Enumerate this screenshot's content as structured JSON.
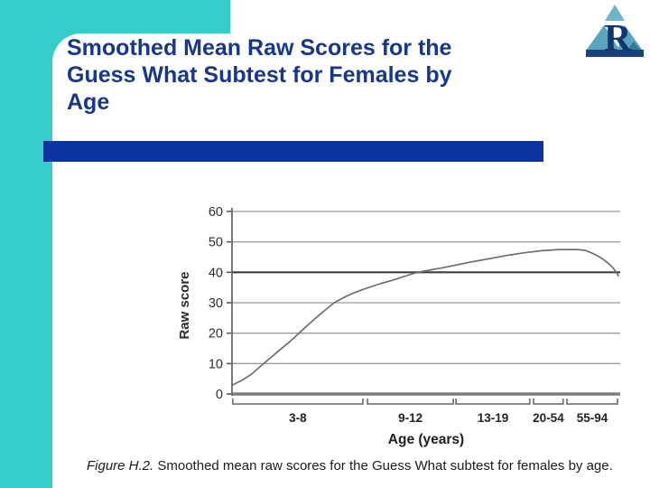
{
  "slide": {
    "title_lines": [
      "Smoothed Mean Raw Scores for the",
      "Guess What Subtest for Females by",
      "Age"
    ],
    "caption_prefix": "Figure H.2.",
    "caption_text": " Smoothed mean raw scores for the Guess What subtest for females by age."
  },
  "logo": {
    "letter": "R"
  },
  "colors": {
    "teal_accent": "#35cdca",
    "divider_blue": "#0a33a0",
    "title_blue": "#17378c",
    "grid_gray": "#9b9b9b",
    "emphasis_gray": "#3f3f3f",
    "curve_gray": "#6e6e6e",
    "logo_lightblue": "#58a6bd",
    "logo_navy": "#1c3f7e"
  },
  "chart_data": {
    "type": "line",
    "title": "",
    "ylabel": "Raw score",
    "xlabel": "Age (years)",
    "ylim": [
      0,
      60
    ],
    "yticks": [
      0,
      10,
      20,
      30,
      40,
      50,
      60
    ],
    "emphasized_gridline": 40,
    "grid": true,
    "legend": "none",
    "categories": [
      {
        "label": "3-8",
        "start_pct": 0.2,
        "end_pct": 33.7
      },
      {
        "label": "9-12",
        "start_pct": 34.9,
        "end_pct": 57.0
      },
      {
        "label": "13-19",
        "start_pct": 57.7,
        "end_pct": 76.7
      },
      {
        "label": "20-54",
        "start_pct": 77.7,
        "end_pct": 85.3
      },
      {
        "label": "55-94",
        "start_pct": 86.3,
        "end_pct": 99.3
      }
    ],
    "series": [
      {
        "name": "Smoothed mean raw score (females)",
        "points_pct_value": [
          [
            0.2,
            3
          ],
          [
            2.5,
            4.5
          ],
          [
            5,
            6.5
          ],
          [
            7.7,
            9.5
          ],
          [
            10,
            12
          ],
          [
            12.3,
            14.5
          ],
          [
            14.7,
            17
          ],
          [
            17,
            19.7
          ],
          [
            19.3,
            22.4
          ],
          [
            21.6,
            25
          ],
          [
            24,
            27.6
          ],
          [
            26.3,
            30
          ],
          [
            28.6,
            31.6
          ],
          [
            30.9,
            33
          ],
          [
            33.3,
            34.2
          ],
          [
            35.6,
            35.2
          ],
          [
            38.5,
            36.4
          ],
          [
            41.4,
            37.4
          ],
          [
            44.3,
            38.6
          ],
          [
            47.2,
            39.8
          ],
          [
            50.7,
            40.7
          ],
          [
            54.2,
            41.5
          ],
          [
            57.7,
            42.4
          ],
          [
            61.2,
            43.3
          ],
          [
            64.7,
            44.1
          ],
          [
            68.1,
            44.9
          ],
          [
            71.6,
            45.7
          ],
          [
            75.1,
            46.4
          ],
          [
            79.8,
            47.1
          ],
          [
            84.4,
            47.5
          ],
          [
            89.1,
            47.5
          ],
          [
            91,
            47.2
          ],
          [
            92.6,
            46.4
          ],
          [
            94.2,
            45.4
          ],
          [
            95.6,
            44.3
          ],
          [
            96.8,
            43.1
          ],
          [
            97.9,
            41.8
          ],
          [
            98.8,
            40.4
          ],
          [
            99.5,
            38.9
          ]
        ]
      }
    ]
  }
}
